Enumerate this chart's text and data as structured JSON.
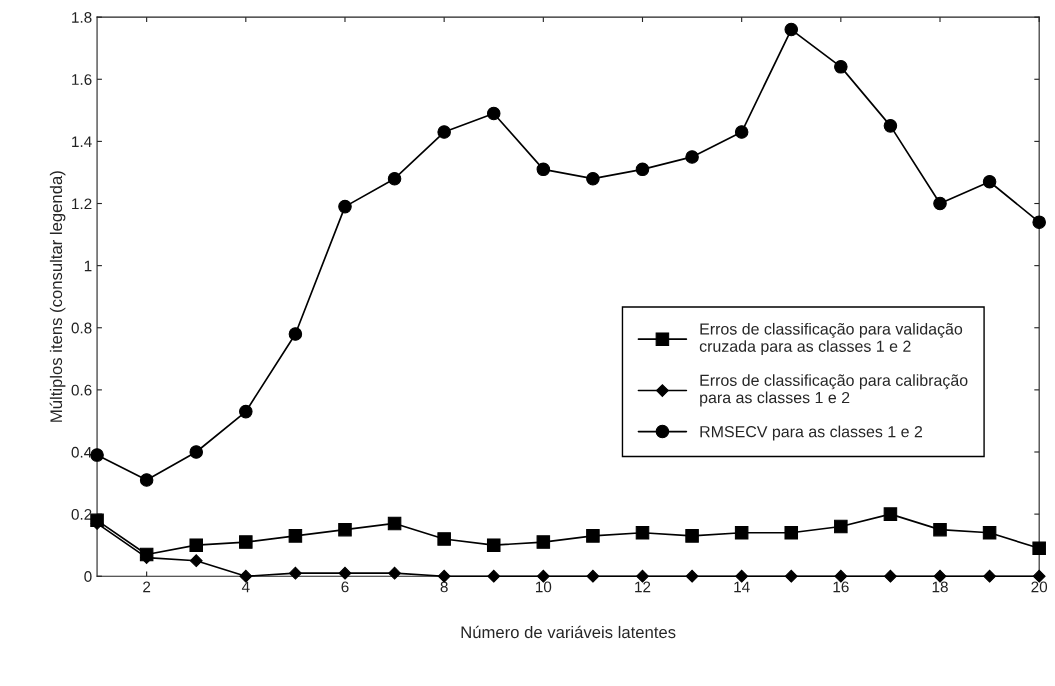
{
  "chart_data": {
    "type": "line",
    "xlabel": "Número de variáveis latentes",
    "ylabel": "Múltiplos itens (consultar legenda)",
    "x": [
      1,
      2,
      3,
      4,
      5,
      6,
      7,
      8,
      9,
      10,
      11,
      12,
      13,
      14,
      15,
      16,
      17,
      18,
      19,
      20
    ],
    "xlim": [
      1,
      20
    ],
    "xticks": [
      2,
      4,
      6,
      8,
      10,
      12,
      14,
      16,
      18,
      20
    ],
    "ylim": [
      0,
      1.8
    ],
    "yticks": [
      0,
      0.2,
      0.4,
      0.6,
      0.8,
      1,
      1.2,
      1.4,
      1.6,
      1.8
    ],
    "grid": false,
    "legend": "right",
    "line_style": "solid",
    "series": [
      {
        "name": "Erros de classificação para validação\ncruzada para as classes 1 e 2",
        "color": "#000000",
        "marker": "square",
        "values": [
          0.18,
          0.07,
          0.1,
          0.11,
          0.13,
          0.15,
          0.17,
          0.12,
          0.1,
          0.11,
          0.13,
          0.14,
          0.13,
          0.14,
          0.14,
          0.16,
          0.2,
          0.15,
          0.14,
          0.09
        ]
      },
      {
        "name": "Erros de classificação para calibração\npara as classes 1 e 2",
        "color": "#000000",
        "marker": "diamond",
        "values": [
          0.17,
          0.06,
          0.05,
          0,
          0.01,
          0.01,
          0.01,
          0,
          0,
          0,
          0,
          0,
          0,
          0,
          0,
          0,
          0,
          0,
          0,
          0
        ]
      },
      {
        "name": "RMSECV para as classes 1 e 2",
        "color": "#000000",
        "marker": "circle",
        "values": [
          0.39,
          0.31,
          0.4,
          0.53,
          0.78,
          1.19,
          1.28,
          1.43,
          1.49,
          1.31,
          1.28,
          1.31,
          1.35,
          1.43,
          1.76,
          1.64,
          1.45,
          1.2,
          1.27,
          1.14
        ]
      }
    ]
  }
}
